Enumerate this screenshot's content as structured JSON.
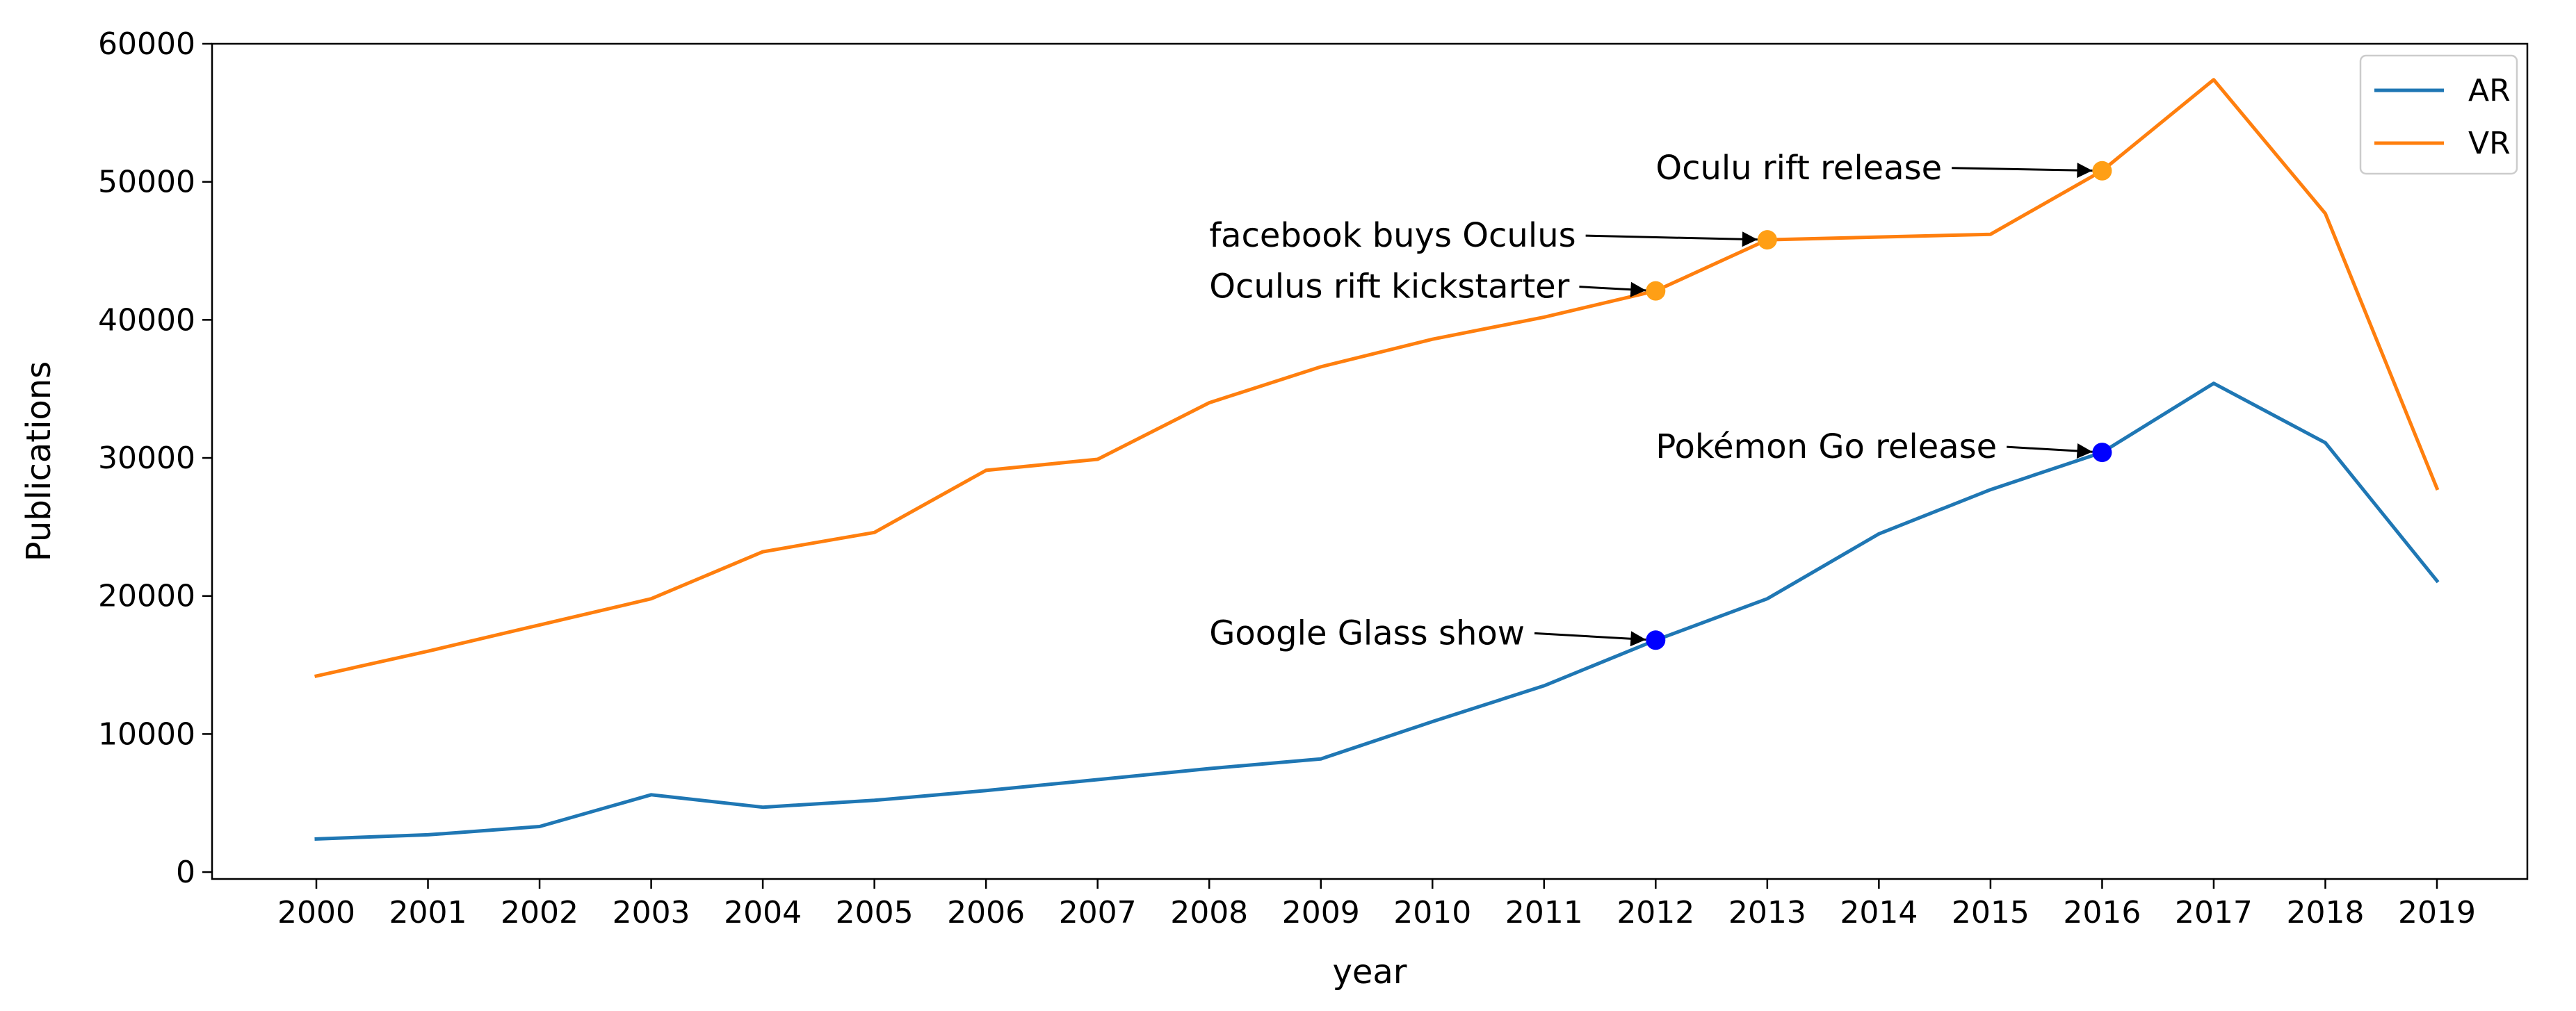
{
  "chart_data": {
    "type": "line",
    "title": "",
    "xlabel": "year",
    "ylabel": "Publications",
    "x": [
      "2000",
      "2001",
      "2002",
      "2003",
      "2004",
      "2005",
      "2006",
      "2007",
      "2008",
      "2009",
      "2010",
      "2011",
      "2012",
      "2013",
      "2014",
      "2015",
      "2016",
      "2017",
      "2018",
      "2019"
    ],
    "yticks": [
      "0",
      "10000",
      "20000",
      "30000",
      "40000",
      "50000",
      "60000"
    ],
    "ylim": [
      -500,
      60000
    ],
    "grid": false,
    "legend_position": "top-right",
    "series": [
      {
        "name": "AR",
        "color": "#1f77b4",
        "marker_color": "#0000ff",
        "values": [
          2400,
          2700,
          3300,
          5600,
          4700,
          5200,
          5900,
          6700,
          7500,
          8200,
          10900,
          13500,
          16800,
          19800,
          24500,
          27700,
          30400,
          35400,
          31100,
          21100
        ]
      },
      {
        "name": "VR",
        "color": "#ff7f0e",
        "marker_color": "#ff9f15",
        "values": [
          14200,
          16000,
          17900,
          19800,
          23200,
          24600,
          29100,
          29900,
          34000,
          36600,
          38600,
          40200,
          42100,
          45800,
          46000,
          46200,
          50800,
          57400,
          47700,
          27800
        ]
      }
    ],
    "annotations": [
      {
        "text": "Oculu rift release",
        "series": "VR",
        "x": "2016",
        "y": 50800,
        "text_x": "2012",
        "text_y": 51000
      },
      {
        "text": "facebook buys Oculus",
        "series": "VR",
        "x": "2013",
        "y": 45800,
        "text_x": "2008",
        "text_y": 46100
      },
      {
        "text": "Oculus rift kickstarter",
        "series": "VR",
        "x": "2012",
        "y": 42100,
        "text_x": "2008",
        "text_y": 42400
      },
      {
        "text": "Pokémon Go release",
        "series": "AR",
        "x": "2016",
        "y": 30400,
        "text_x": "2012",
        "text_y": 30800
      },
      {
        "text": "Google Glass show",
        "series": "AR",
        "x": "2012",
        "y": 16800,
        "text_x": "2008",
        "text_y": 17300
      }
    ]
  }
}
